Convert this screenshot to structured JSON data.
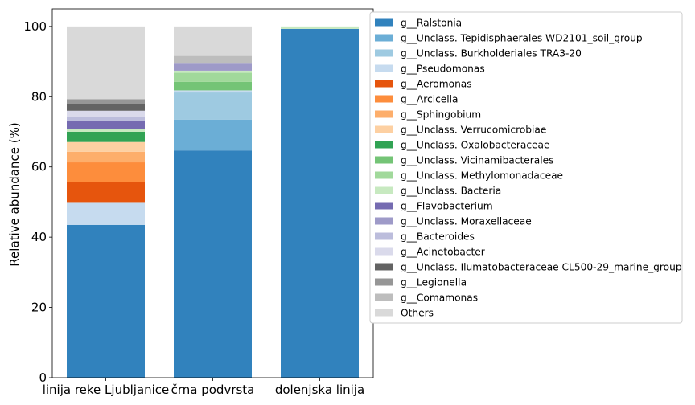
{
  "chart_data": {
    "type": "bar",
    "stacked": true,
    "ylabel": "Relative abundance (%)",
    "xlabel": "",
    "title": "",
    "ylim": [
      0,
      105
    ],
    "yticks": [
      0,
      20,
      40,
      60,
      80,
      100
    ],
    "categories": [
      "linija reke Ljubljanice",
      "črna podvrsta",
      "dolenjska linija"
    ],
    "legend_position": "outside-right",
    "series": [
      {
        "name": "g__Ralstonia",
        "color": "#3182bd",
        "values": [
          43.5,
          64.7,
          99.3
        ]
      },
      {
        "name": "g__Unclass. Tepidisphaerales WD2101_soil_group",
        "color": "#6baed6",
        "values": [
          0,
          8.8,
          0
        ]
      },
      {
        "name": "g__Unclass. Burkholderiales TRA3-20",
        "color": "#9ecae1",
        "values": [
          0,
          7.7,
          0
        ]
      },
      {
        "name": "g__Pseudomonas",
        "color": "#c6dbef",
        "values": [
          6.5,
          0.6,
          0
        ]
      },
      {
        "name": "g__Aeromonas",
        "color": "#e6550d",
        "values": [
          5.8,
          0,
          0
        ]
      },
      {
        "name": "g__Arcicella",
        "color": "#fd8d3c",
        "values": [
          5.5,
          0,
          0
        ]
      },
      {
        "name": "g__Sphingobium",
        "color": "#fdae6b",
        "values": [
          3.0,
          0,
          0
        ]
      },
      {
        "name": "g__Unclass. Verrucomicrobiae",
        "color": "#fdd0a2",
        "values": [
          2.8,
          0,
          0
        ]
      },
      {
        "name": "g__Unclass. Oxalobacteraceae",
        "color": "#31a354",
        "values": [
          2.9,
          0,
          0
        ]
      },
      {
        "name": "g__Unclass. Vicinamibacterales",
        "color": "#74c476",
        "values": [
          0,
          2.4,
          0
        ]
      },
      {
        "name": "g__Unclass. Methylomonadaceae",
        "color": "#a1d99b",
        "values": [
          0,
          2.6,
          0
        ]
      },
      {
        "name": "g__Unclass. Bacteria",
        "color": "#c7e9c0",
        "values": [
          0.8,
          0.6,
          0.7
        ]
      },
      {
        "name": "g__Flavobacterium",
        "color": "#756bb1",
        "values": [
          2.2,
          0,
          0
        ]
      },
      {
        "name": "g__Unclass. Moraxellaceae",
        "color": "#9e9ac8",
        "values": [
          0,
          2.0,
          0
        ]
      },
      {
        "name": "g__Bacteroides",
        "color": "#bcbddc",
        "values": [
          1.2,
          0,
          0
        ]
      },
      {
        "name": "g__Acinetobacter",
        "color": "#dadaeb",
        "values": [
          1.8,
          0,
          0
        ]
      },
      {
        "name": "g__Unclass. Ilumatobacteraceae CL500-29_marine_group",
        "color": "#636363",
        "values": [
          1.8,
          0,
          0
        ]
      },
      {
        "name": "g__Legionella",
        "color": "#969696",
        "values": [
          1.5,
          0,
          0
        ]
      },
      {
        "name": "g__Comamonas",
        "color": "#bdbdbd",
        "values": [
          0,
          2.2,
          0
        ]
      },
      {
        "name": "Others",
        "color": "#d9d9d9",
        "values": [
          20.7,
          8.4,
          0
        ]
      }
    ]
  }
}
